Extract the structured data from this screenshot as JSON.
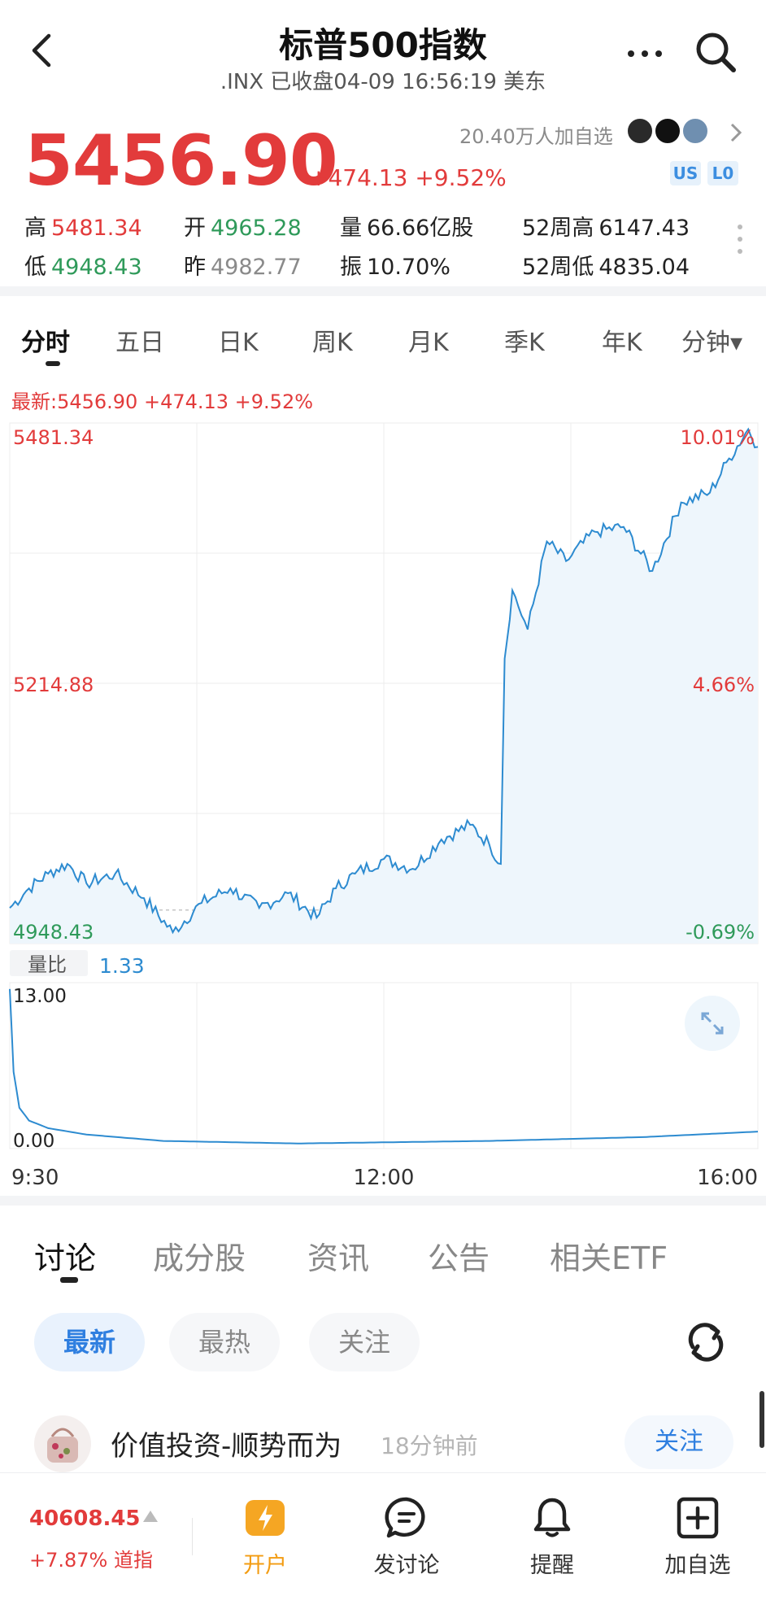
{
  "header": {
    "title": "标普500指数",
    "subtitle": ".INX 已收盘04-09 16:56:19 美东"
  },
  "quote": {
    "price": "5456.90",
    "change": "+474.13 +9.52%",
    "watchers": "20.40万人加自选",
    "badge_us": "US",
    "badge_lo": "L0"
  },
  "stats": [
    {
      "label": "高",
      "value": "5481.34",
      "color": "#e23b3b"
    },
    {
      "label": "开",
      "value": "4965.28",
      "color": "#2f9a5a"
    },
    {
      "label": "量",
      "value": "66.66亿股",
      "color": "#222222"
    },
    {
      "label": "52周高",
      "value": "6147.43",
      "color": "#222222"
    },
    {
      "label": "低",
      "value": "4948.43",
      "color": "#2f9a5a"
    },
    {
      "label": "昨",
      "value": "4982.77",
      "color": "#8a8a8a"
    },
    {
      "label": "振",
      "value": "10.70%",
      "color": "#222222"
    },
    {
      "label": "52周低",
      "value": "4835.04",
      "color": "#222222"
    }
  ],
  "period_tabs": [
    "分时",
    "五日",
    "日K",
    "周K",
    "月K",
    "季K",
    "年K",
    "分钟▾"
  ],
  "latest_line": "最新:5456.90  +474.13  +9.52%",
  "chart_data": {
    "type": "area",
    "x_tick_labels": [
      "9:30",
      "12:00",
      "16:00"
    ],
    "y_left_labels": [
      "5481.34",
      "5214.88",
      "4948.43"
    ],
    "y_right_labels": [
      "10.01%",
      "4.66%",
      "-0.69%"
    ],
    "ylim": [
      4948.43,
      5481.34
    ],
    "prev_close": 4982.77,
    "x_minutes_from_open": [
      0,
      10,
      20,
      30,
      40,
      55,
      70,
      85,
      100,
      115,
      130,
      145,
      160,
      170,
      180,
      195,
      210,
      225,
      240,
      250,
      256,
      258,
      262,
      270,
      280,
      290,
      305,
      320,
      335,
      350,
      365,
      375,
      385,
      390
    ],
    "values": [
      4985,
      5005,
      5020,
      5030,
      5010,
      5020,
      4995,
      4960,
      4990,
      5005,
      4985,
      5000,
      4975,
      5005,
      5020,
      5035,
      5025,
      5055,
      5070,
      5050,
      5030,
      5240,
      5310,
      5270,
      5360,
      5340,
      5370,
      5375,
      5330,
      5400,
      5410,
      5445,
      5475,
      5456.9
    ],
    "volume_ratio": {
      "label": "量比",
      "current": "1.33",
      "y_labels": [
        "13.00",
        "0.00"
      ],
      "ylim": [
        0,
        13
      ],
      "x_minutes_from_open": [
        0,
        2,
        5,
        10,
        20,
        40,
        80,
        150,
        250,
        330,
        390
      ],
      "values": [
        12.5,
        6.0,
        3.2,
        2.2,
        1.6,
        1.1,
        0.6,
        0.4,
        0.6,
        0.9,
        1.33
      ]
    }
  },
  "content_tabs": [
    "讨论",
    "成分股",
    "资讯",
    "公告",
    "相关ETF"
  ],
  "filter_pills": [
    "最新",
    "最热",
    "关注"
  ],
  "post": {
    "user": "价值投资-顺势而为",
    "time": "18分钟前",
    "follow": "关注"
  },
  "bottom_bar": {
    "dj_value": "40608.45",
    "dj_change": "+7.87% 道指",
    "items": [
      "开户",
      "发讨论",
      "提醒",
      "加自选"
    ]
  },
  "colors": {
    "up": "#e23b3b",
    "down": "#2f9a5a",
    "accent": "#2f7fe0",
    "line": "#2d8bd0"
  }
}
